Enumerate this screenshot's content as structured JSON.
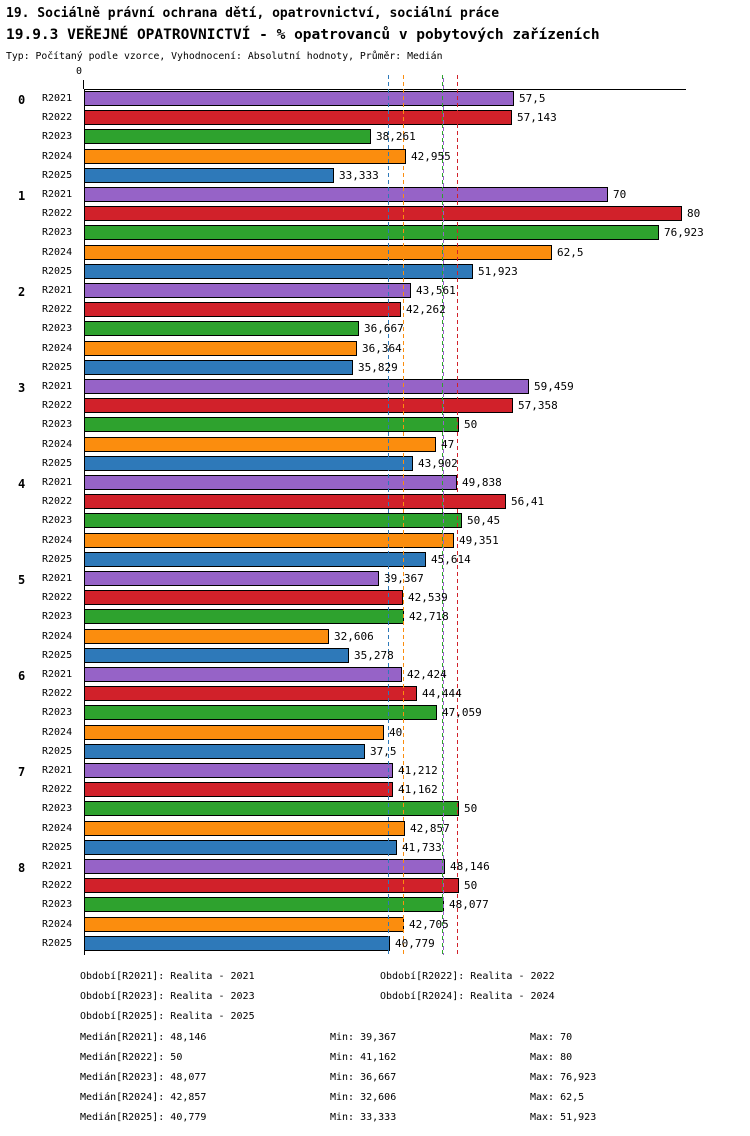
{
  "header": {
    "line1": "19. Sociálně právní ochrana dětí, opatrovnictví, sociální práce",
    "line2": "19.9.3 VEŘEJNÉ OPATROVNICTVÍ - % opatrovanců v pobytových zařízeních",
    "line3": "Typ: Počítaný podle vzorce, Vyhodnocení: Absolutní hodnoty, Průměr: Medián"
  },
  "chart_data": {
    "type": "bar",
    "orientation": "horizontal",
    "title": "19.9.3 VEŘEJNÉ OPATROVNICTVÍ - % opatrovanců v pobytových zařízeních",
    "xlabel": "",
    "ylabel": "",
    "xlim": [
      0,
      80
    ],
    "axis_zero_label": "0",
    "grid": false,
    "legend_position": "bottom",
    "series_names": [
      "R2021",
      "R2022",
      "R2023",
      "R2024",
      "R2025"
    ],
    "colors": {
      "R2021": "#9663C7",
      "R2022": "#D1212A",
      "R2023": "#2EA22E",
      "R2024": "#FB8D0E",
      "R2025": "#2E79B9"
    },
    "groups": [
      {
        "label": "0",
        "values": [
          57.5,
          57.143,
          38.261,
          42.955,
          33.333
        ],
        "labels": [
          "57,5",
          "57,143",
          "38,261",
          "42,955",
          "33,333"
        ]
      },
      {
        "label": "1",
        "values": [
          70,
          80,
          76.923,
          62.5,
          51.923
        ],
        "labels": [
          "70",
          "80",
          "76,923",
          "62,5",
          "51,923"
        ]
      },
      {
        "label": "2",
        "values": [
          43.561,
          42.262,
          36.667,
          36.364,
          35.829
        ],
        "labels": [
          "43,561",
          "42,262",
          "36,667",
          "36,364",
          "35,829"
        ]
      },
      {
        "label": "3",
        "values": [
          59.459,
          57.358,
          50,
          47,
          43.902
        ],
        "labels": [
          "59,459",
          "57,358",
          "50",
          "47",
          "43,902"
        ]
      },
      {
        "label": "4",
        "values": [
          49.838,
          56.41,
          50.45,
          49.351,
          45.614
        ],
        "labels": [
          "49,838",
          "56,41",
          "50,45",
          "49,351",
          "45,614"
        ]
      },
      {
        "label": "5",
        "values": [
          39.367,
          42.539,
          42.718,
          32.606,
          35.278
        ],
        "labels": [
          "39,367",
          "42,539",
          "42,718",
          "32,606",
          "35,278"
        ]
      },
      {
        "label": "6",
        "values": [
          42.424,
          44.444,
          47.059,
          40,
          37.5
        ],
        "labels": [
          "42,424",
          "44,444",
          "47,059",
          "40",
          "37,5"
        ]
      },
      {
        "label": "7",
        "values": [
          41.212,
          41.162,
          50,
          42.857,
          41.733
        ],
        "labels": [
          "41,212",
          "41,162",
          "50",
          "42,857",
          "41,733"
        ]
      },
      {
        "label": "8",
        "values": [
          48.146,
          50,
          48.077,
          42.705,
          40.779
        ],
        "labels": [
          "48,146",
          "50",
          "48,077",
          "42,705",
          "40,779"
        ]
      }
    ],
    "medians": [
      {
        "series": "R2021",
        "value": 48.146
      },
      {
        "series": "R2022",
        "value": 50
      },
      {
        "series": "R2023",
        "value": 48.077
      },
      {
        "series": "R2024",
        "value": 42.857
      },
      {
        "series": "R2025",
        "value": 40.779
      }
    ]
  },
  "legend": {
    "rows": [
      [
        "Období[R2021]: Realita - 2021",
        "Období[R2022]: Realita - 2022"
      ],
      [
        "Období[R2023]: Realita - 2023",
        "Období[R2024]: Realita - 2024"
      ],
      [
        "Období[R2025]: Realita - 2025"
      ]
    ]
  },
  "stats": {
    "rows": [
      {
        "median": "Medián[R2021]: 48,146",
        "min": "Min: 39,367",
        "max": "Max: 70"
      },
      {
        "median": "Medián[R2022]: 50",
        "min": "Min: 41,162",
        "max": "Max: 80"
      },
      {
        "median": "Medián[R2023]: 48,077",
        "min": "Min: 36,667",
        "max": "Max: 76,923"
      },
      {
        "median": "Medián[R2024]: 42,857",
        "min": "Min: 32,606",
        "max": "Max: 62,5"
      },
      {
        "median": "Medián[R2025]: 40,779",
        "min": "Min: 33,333",
        "max": "Max: 51,923"
      }
    ]
  }
}
